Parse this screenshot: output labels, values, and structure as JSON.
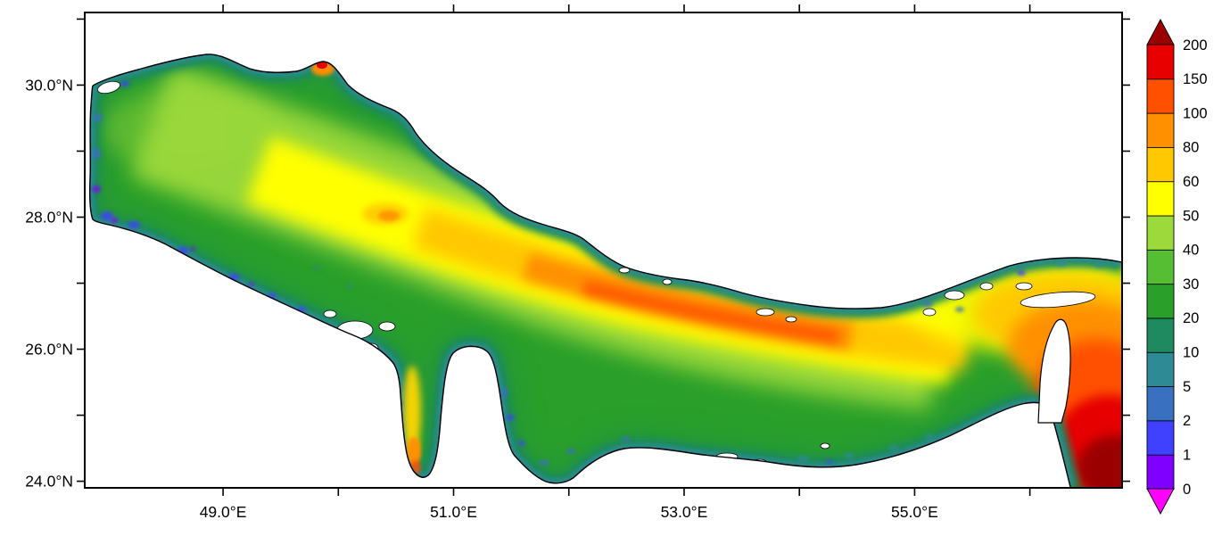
{
  "figure": {
    "background_color": "#FFFFFF",
    "frame_color": "#000000"
  },
  "chart_data": {
    "type": "heatmap",
    "region_depicted": "Persian Gulf with Strait of Hormuz and northwestern Gulf of Oman; land and masked shallow areas shown white",
    "x_axis": {
      "label": "",
      "tick_labels": [
        "49.0°E",
        "51.0°E",
        "53.0°E",
        "55.0°E"
      ],
      "tick_values_deg_east": [
        49,
        51,
        53,
        55
      ],
      "unlabeled_tick_values_deg_east": [
        50,
        52,
        54,
        56
      ],
      "range_deg_east": [
        47.8,
        56.8
      ],
      "grid": false
    },
    "y_axis": {
      "label": "",
      "tick_labels": [
        "30.0°N",
        "28.0°N",
        "26.0°N",
        "24.0°N"
      ],
      "tick_values_deg_north": [
        30,
        28,
        26,
        24
      ],
      "unlabeled_tick_values_deg_north": [
        31,
        29,
        27,
        25
      ],
      "range_deg_north": [
        23.9,
        31.1
      ],
      "grid": false
    },
    "colorbar": {
      "orientation": "vertical",
      "position": "right",
      "tick_labels_top_to_bottom": [
        "200",
        "150",
        "100",
        "80",
        "60",
        "50",
        "40",
        "30",
        "20",
        "10",
        "5",
        "2",
        "1",
        "0"
      ],
      "levels_low_to_high": [
        0,
        1,
        2,
        5,
        10,
        20,
        30,
        40,
        50,
        60,
        80,
        100,
        150,
        200
      ],
      "segment_colors_low_to_high": [
        "#8000FF",
        "#4040FF",
        "#3A70C0",
        "#2E8B96",
        "#1F8A60",
        "#2AA02A",
        "#55BE32",
        "#9CD93B",
        "#FFFF00",
        "#FFC800",
        "#FF9100",
        "#FF5000",
        "#E60000"
      ],
      "below_min_arrow_color": "#FF00FF",
      "above_max_arrow_color": "#9B0000"
    },
    "field_summary": [
      {
        "area": "coastal fringes and shallow margins",
        "approx_range": "1-10"
      },
      {
        "area": "northwestern basin interior",
        "approx_range": "20-50"
      },
      {
        "area": "central axis band running NW-SE",
        "approx_range": "50-80"
      },
      {
        "area": "south-central band near 52-55E",
        "approx_range": "80-150"
      },
      {
        "area": "Strait of Hormuz approaches",
        "approx_range": "50-150"
      },
      {
        "area": "southeastern corner (Gulf of Oman)",
        "approx_range": "150 to over 200"
      },
      {
        "area": "spot on northern coast near 50E 30.3N",
        "approx_range": "100-150"
      },
      {
        "area": "streak west of Qatar (Gulf of Salwa)",
        "approx_range": "60-100"
      },
      {
        "area": "land, islands and masked cells",
        "approx_range": "no data (white)"
      }
    ]
  }
}
